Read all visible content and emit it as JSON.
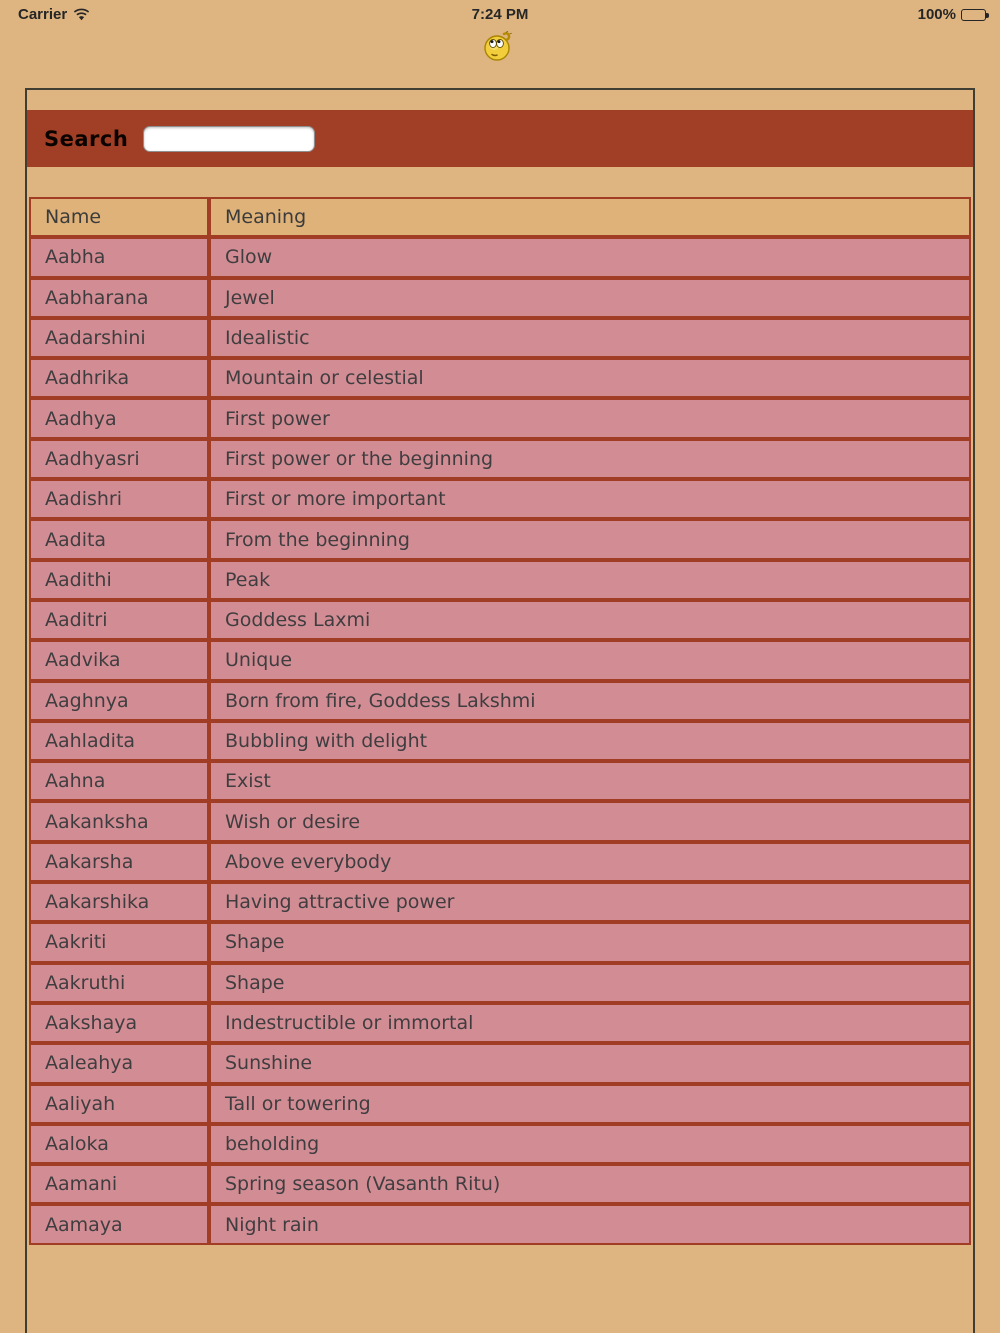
{
  "status_bar": {
    "carrier": "Carrier",
    "time": "7:24 PM",
    "battery_percent": "100%"
  },
  "search": {
    "label": "Search",
    "value": "",
    "placeholder": ""
  },
  "table": {
    "columns": [
      "Name",
      "Meaning"
    ],
    "rows": [
      [
        "Aabha",
        "Glow"
      ],
      [
        "Aabharana",
        "Jewel"
      ],
      [
        "Aadarshini",
        "Idealistic"
      ],
      [
        "Aadhrika",
        "Mountain or celestial"
      ],
      [
        "Aadhya",
        "First power"
      ],
      [
        "Aadhyasri",
        "First power or the beginning"
      ],
      [
        "Aadishri",
        "First or more important"
      ],
      [
        "Aadita",
        "From the beginning"
      ],
      [
        "Aadithi",
        "Peak"
      ],
      [
        "Aaditri",
        "Goddess Laxmi"
      ],
      [
        "Aadvika",
        "Unique"
      ],
      [
        "Aaghnya",
        "Born from fire, Goddess Lakshmi"
      ],
      [
        "Aahladita",
        "Bubbling with delight"
      ],
      [
        "Aahna",
        "Exist"
      ],
      [
        "Aakanksha",
        "Wish or desire"
      ],
      [
        "Aakarsha",
        "Above everybody"
      ],
      [
        "Aakarshika",
        "Having attractive power"
      ],
      [
        "Aakriti",
        "Shape"
      ],
      [
        "Aakruthi",
        "Shape"
      ],
      [
        "Aakshaya",
        "Indestructible or immortal"
      ],
      [
        "Aaleahya",
        "Sunshine"
      ],
      [
        "Aaliyah",
        "Tall or towering"
      ],
      [
        "Aaloka",
        "beholding"
      ],
      [
        "Aamani",
        "Spring season (Vasanth Ritu)"
      ],
      [
        "Aamaya",
        "Night rain"
      ]
    ]
  },
  "icons": {
    "wifi": "wifi-icon",
    "battery": "battery-icon",
    "smiley": "thinking-smiley-icon"
  },
  "colors": {
    "page_background": "#deb480",
    "search_bar": "#a03e26",
    "table_border": "#a23d25",
    "row_background": "#d28d94",
    "header_row_background": "#dfb27a",
    "frame_border": "#403e33",
    "text": "#403d40"
  }
}
